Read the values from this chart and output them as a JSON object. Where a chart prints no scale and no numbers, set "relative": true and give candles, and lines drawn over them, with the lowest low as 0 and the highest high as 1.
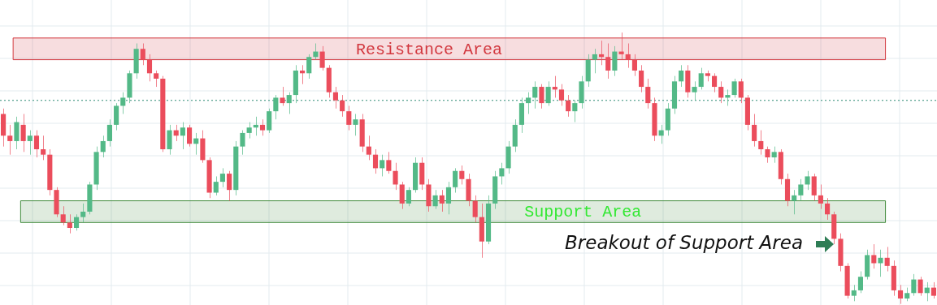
{
  "chart_data": {
    "type": "candlestick",
    "relative": true,
    "grid": true,
    "tick_labels": false,
    "categories": [
      null,
      null,
      null,
      null,
      null,
      null,
      null,
      null,
      null,
      null,
      null,
      null,
      null,
      null,
      null,
      null,
      null,
      null,
      null,
      null,
      null,
      null,
      null,
      null,
      null,
      null,
      null,
      null,
      null,
      null,
      null,
      null,
      null,
      null,
      null,
      null,
      null,
      null,
      null,
      null,
      null,
      null,
      null,
      null,
      null,
      null,
      null,
      null,
      null,
      null,
      null,
      null,
      null,
      null,
      null,
      null,
      null,
      null,
      null,
      null,
      null,
      null,
      null,
      null,
      null,
      null,
      null,
      null,
      null,
      null,
      null,
      null,
      null,
      null,
      null,
      null,
      null,
      null,
      null,
      null,
      null,
      null,
      null,
      null,
      null,
      null,
      null,
      null,
      null,
      null,
      null,
      null,
      null,
      null,
      null,
      null,
      null,
      null,
      null,
      null,
      null,
      null,
      null,
      null,
      null,
      null,
      null,
      null,
      null,
      null,
      null,
      null,
      null,
      null,
      null,
      null,
      null,
      null,
      null,
      null,
      null,
      null,
      null,
      null,
      null,
      null,
      null,
      null,
      null,
      null,
      null,
      null,
      null,
      null,
      null,
      null,
      null,
      null,
      null,
      null,
      null
    ],
    "ohlc": [
      [
        0.7,
        0.72,
        0.58,
        0.62
      ],
      [
        0.62,
        0.66,
        0.55,
        0.6
      ],
      [
        0.6,
        0.69,
        0.57,
        0.67
      ],
      [
        0.66,
        0.7,
        0.56,
        0.6
      ],
      [
        0.6,
        0.64,
        0.55,
        0.62
      ],
      [
        0.62,
        0.64,
        0.54,
        0.57
      ],
      [
        0.57,
        0.62,
        0.53,
        0.55
      ],
      [
        0.55,
        0.57,
        0.4,
        0.42
      ],
      [
        0.42,
        0.43,
        0.32,
        0.33
      ],
      [
        0.33,
        0.36,
        0.29,
        0.3
      ],
      [
        0.3,
        0.33,
        0.26,
        0.28
      ],
      [
        0.28,
        0.33,
        0.27,
        0.32
      ],
      [
        0.32,
        0.37,
        0.3,
        0.34
      ],
      [
        0.34,
        0.45,
        0.33,
        0.44
      ],
      [
        0.44,
        0.58,
        0.42,
        0.56
      ],
      [
        0.56,
        0.62,
        0.54,
        0.6
      ],
      [
        0.6,
        0.68,
        0.58,
        0.66
      ],
      [
        0.66,
        0.74,
        0.64,
        0.73
      ],
      [
        0.73,
        0.78,
        0.7,
        0.76
      ],
      [
        0.76,
        0.86,
        0.74,
        0.85
      ],
      [
        0.85,
        0.96,
        0.83,
        0.94
      ],
      [
        0.94,
        0.96,
        0.88,
        0.9
      ],
      [
        0.9,
        0.92,
        0.82,
        0.85
      ],
      [
        0.85,
        0.86,
        0.8,
        0.83
      ],
      [
        0.83,
        0.84,
        0.56,
        0.57
      ],
      [
        0.57,
        0.66,
        0.55,
        0.64
      ],
      [
        0.64,
        0.66,
        0.6,
        0.62
      ],
      [
        0.62,
        0.67,
        0.57,
        0.65
      ],
      [
        0.65,
        0.66,
        0.58,
        0.59
      ],
      [
        0.59,
        0.63,
        0.55,
        0.61
      ],
      [
        0.61,
        0.64,
        0.52,
        0.53
      ],
      [
        0.53,
        0.54,
        0.39,
        0.41
      ],
      [
        0.41,
        0.47,
        0.4,
        0.45
      ],
      [
        0.45,
        0.5,
        0.43,
        0.48
      ],
      [
        0.48,
        0.49,
        0.38,
        0.42
      ],
      [
        0.42,
        0.6,
        0.4,
        0.58
      ],
      [
        0.58,
        0.64,
        0.55,
        0.63
      ],
      [
        0.63,
        0.67,
        0.61,
        0.65
      ],
      [
        0.65,
        0.69,
        0.62,
        0.66
      ],
      [
        0.66,
        0.68,
        0.62,
        0.64
      ],
      [
        0.64,
        0.72,
        0.63,
        0.71
      ],
      [
        0.71,
        0.77,
        0.68,
        0.76
      ],
      [
        0.76,
        0.8,
        0.73,
        0.74
      ],
      [
        0.74,
        0.78,
        0.7,
        0.77
      ],
      [
        0.77,
        0.88,
        0.74,
        0.86
      ],
      [
        0.86,
        0.88,
        0.81,
        0.85
      ],
      [
        0.85,
        0.92,
        0.83,
        0.91
      ],
      [
        0.91,
        0.96,
        0.9,
        0.93
      ],
      [
        0.93,
        0.95,
        0.86,
        0.87
      ],
      [
        0.87,
        0.88,
        0.76,
        0.78
      ],
      [
        0.78,
        0.8,
        0.72,
        0.75
      ],
      [
        0.75,
        0.77,
        0.69,
        0.71
      ],
      [
        0.71,
        0.73,
        0.64,
        0.66
      ],
      [
        0.66,
        0.7,
        0.62,
        0.68
      ],
      [
        0.68,
        0.7,
        0.56,
        0.58
      ],
      [
        0.58,
        0.62,
        0.53,
        0.55
      ],
      [
        0.55,
        0.57,
        0.48,
        0.5
      ],
      [
        0.5,
        0.55,
        0.47,
        0.53
      ],
      [
        0.53,
        0.56,
        0.48,
        0.49
      ],
      [
        0.49,
        0.52,
        0.42,
        0.44
      ],
      [
        0.44,
        0.45,
        0.35,
        0.37
      ],
      [
        0.37,
        0.43,
        0.36,
        0.42
      ],
      [
        0.42,
        0.54,
        0.41,
        0.52
      ],
      [
        0.52,
        0.54,
        0.42,
        0.44
      ],
      [
        0.44,
        0.46,
        0.34,
        0.36
      ],
      [
        0.36,
        0.42,
        0.35,
        0.4
      ],
      [
        0.4,
        0.42,
        0.34,
        0.37
      ],
      [
        0.37,
        0.45,
        0.33,
        0.43
      ],
      [
        0.43,
        0.5,
        0.41,
        0.49
      ],
      [
        0.49,
        0.51,
        0.44,
        0.46
      ],
      [
        0.46,
        0.48,
        0.36,
        0.38
      ],
      [
        0.38,
        0.4,
        0.3,
        0.32
      ],
      [
        0.32,
        0.37,
        0.17,
        0.23
      ],
      [
        0.23,
        0.4,
        0.22,
        0.37
      ],
      [
        0.37,
        0.49,
        0.35,
        0.47
      ],
      [
        0.47,
        0.52,
        0.44,
        0.5
      ],
      [
        0.5,
        0.6,
        0.48,
        0.58
      ],
      [
        0.58,
        0.68,
        0.56,
        0.66
      ],
      [
        0.66,
        0.76,
        0.63,
        0.74
      ],
      [
        0.74,
        0.78,
        0.7,
        0.76
      ],
      [
        0.76,
        0.82,
        0.72,
        0.8
      ],
      [
        0.8,
        0.81,
        0.72,
        0.74
      ],
      [
        0.74,
        0.82,
        0.73,
        0.8
      ],
      [
        0.8,
        0.84,
        0.76,
        0.79
      ],
      [
        0.79,
        0.81,
        0.73,
        0.75
      ],
      [
        0.75,
        0.77,
        0.69,
        0.71
      ],
      [
        0.71,
        0.75,
        0.67,
        0.74
      ],
      [
        0.74,
        0.84,
        0.72,
        0.82
      ],
      [
        0.82,
        0.92,
        0.8,
        0.9
      ],
      [
        0.9,
        0.94,
        0.85,
        0.92
      ],
      [
        0.92,
        0.97,
        0.88,
        0.91
      ],
      [
        0.91,
        0.96,
        0.83,
        0.86
      ],
      [
        0.86,
        0.95,
        0.84,
        0.93
      ],
      [
        0.93,
        1.0,
        0.9,
        0.92
      ],
      [
        0.92,
        0.96,
        0.87,
        0.9
      ],
      [
        0.9,
        0.92,
        0.84,
        0.86
      ],
      [
        0.86,
        0.88,
        0.78,
        0.8
      ],
      [
        0.8,
        0.83,
        0.72,
        0.74
      ],
      [
        0.74,
        0.76,
        0.6,
        0.62
      ],
      [
        0.62,
        0.66,
        0.59,
        0.64
      ],
      [
        0.64,
        0.74,
        0.62,
        0.72
      ],
      [
        0.72,
        0.84,
        0.7,
        0.82
      ],
      [
        0.82,
        0.88,
        0.8,
        0.86
      ],
      [
        0.86,
        0.88,
        0.76,
        0.78
      ],
      [
        0.78,
        0.82,
        0.75,
        0.8
      ],
      [
        0.8,
        0.87,
        0.79,
        0.85
      ],
      [
        0.85,
        0.86,
        0.82,
        0.84
      ],
      [
        0.84,
        0.85,
        0.78,
        0.8
      ],
      [
        0.8,
        0.82,
        0.74,
        0.76
      ],
      [
        0.76,
        0.79,
        0.73,
        0.77
      ],
      [
        0.77,
        0.83,
        0.76,
        0.82
      ],
      [
        0.82,
        0.83,
        0.74,
        0.76
      ],
      [
        0.76,
        0.77,
        0.64,
        0.66
      ],
      [
        0.66,
        0.7,
        0.58,
        0.6
      ],
      [
        0.6,
        0.64,
        0.55,
        0.57
      ],
      [
        0.57,
        0.58,
        0.52,
        0.54
      ],
      [
        0.54,
        0.58,
        0.52,
        0.56
      ],
      [
        0.56,
        0.57,
        0.44,
        0.46
      ],
      [
        0.46,
        0.48,
        0.36,
        0.38
      ],
      [
        0.38,
        0.42,
        0.33,
        0.4
      ],
      [
        0.4,
        0.46,
        0.38,
        0.44
      ],
      [
        0.44,
        0.49,
        0.42,
        0.47
      ],
      [
        0.47,
        0.48,
        0.38,
        0.4
      ],
      [
        0.4,
        0.44,
        0.35,
        0.37
      ],
      [
        0.37,
        0.39,
        0.31,
        0.33
      ],
      [
        0.33,
        0.34,
        0.22,
        0.24
      ],
      [
        0.24,
        0.26,
        0.12,
        0.14
      ],
      [
        0.14,
        0.15,
        0.02,
        0.03
      ],
      [
        0.03,
        0.07,
        0.01,
        0.05
      ],
      [
        0.05,
        0.12,
        0.04,
        0.1
      ],
      [
        0.1,
        0.2,
        0.09,
        0.18
      ],
      [
        0.18,
        0.22,
        0.13,
        0.15
      ],
      [
        0.15,
        0.2,
        0.1,
        0.17
      ],
      [
        0.17,
        0.21,
        0.12,
        0.14
      ],
      [
        0.14,
        0.16,
        0.03,
        0.05
      ],
      [
        0.05,
        0.07,
        0.0,
        0.02
      ],
      [
        0.02,
        0.06,
        0.01,
        0.04
      ],
      [
        0.04,
        0.11,
        0.03,
        0.09
      ],
      [
        0.09,
        0.1,
        0.03,
        0.04
      ],
      [
        0.04,
        0.08,
        0.01,
        0.06
      ],
      [
        0.06,
        0.08,
        0.02,
        0.03
      ]
    ],
    "colors": [
      "#eb4d5c",
      "#eb4d5c",
      "#53b987",
      "#eb4d5c",
      "#53b987",
      "#eb4d5c",
      "#eb4d5c",
      "#eb4d5c",
      "#eb4d5c",
      "#eb4d5c",
      "#eb4d5c",
      "#53b987",
      "#53b987",
      "#53b987",
      "#53b987",
      "#53b987",
      "#53b987",
      "#53b987",
      "#53b987",
      "#53b987",
      "#53b987",
      "#eb4d5c",
      "#eb4d5c",
      "#eb4d5c",
      "#eb4d5c",
      "#53b987",
      "#eb4d5c",
      "#53b987",
      "#eb4d5c",
      "#53b987",
      "#eb4d5c",
      "#eb4d5c",
      "#53b987",
      "#53b987",
      "#eb4d5c",
      "#53b987",
      "#53b987",
      "#53b987",
      "#53b987",
      "#eb4d5c",
      "#53b987",
      "#53b987",
      "#eb4d5c",
      "#53b987",
      "#53b987",
      "#eb4d5c",
      "#53b987",
      "#53b987",
      "#eb4d5c",
      "#eb4d5c",
      "#eb4d5c",
      "#eb4d5c",
      "#eb4d5c",
      "#53b987",
      "#eb4d5c",
      "#eb4d5c",
      "#eb4d5c",
      "#53b987",
      "#eb4d5c",
      "#eb4d5c",
      "#eb4d5c",
      "#53b987",
      "#53b987",
      "#eb4d5c",
      "#eb4d5c",
      "#53b987",
      "#eb4d5c",
      "#53b987",
      "#53b987",
      "#eb4d5c",
      "#eb4d5c",
      "#eb4d5c",
      "#eb4d5c",
      "#53b987",
      "#53b987",
      "#53b987",
      "#53b987",
      "#53b987",
      "#53b987",
      "#53b987",
      "#53b987",
      "#eb4d5c",
      "#53b987",
      "#eb4d5c",
      "#eb4d5c",
      "#eb4d5c",
      "#53b987",
      "#53b987",
      "#53b987",
      "#53b987",
      "#eb4d5c",
      "#eb4d5c",
      "#53b987",
      "#eb4d5c",
      "#eb4d5c",
      "#eb4d5c",
      "#eb4d5c",
      "#eb4d5c",
      "#eb4d5c",
      "#53b987",
      "#53b987",
      "#53b987",
      "#53b987",
      "#eb4d5c",
      "#53b987",
      "#53b987",
      "#eb4d5c",
      "#eb4d5c",
      "#eb4d5c",
      "#53b987",
      "#53b987",
      "#eb4d5c",
      "#eb4d5c",
      "#eb4d5c",
      "#eb4d5c",
      "#eb4d5c",
      "#53b987",
      "#eb4d5c",
      "#eb4d5c",
      "#53b987",
      "#53b987",
      "#53b987",
      "#eb4d5c",
      "#eb4d5c",
      "#eb4d5c",
      "#eb4d5c",
      "#eb4d5c",
      "#eb4d5c",
      "#53b987",
      "#53b987",
      "#53b987",
      "#eb4d5c",
      "#53b987",
      "#eb4d5c",
      "#eb4d5c",
      "#eb4d5c",
      "#53b987",
      "#53b987",
      "#eb4d5c",
      "#53b987",
      "#eb4d5c"
    ],
    "bands": [
      {
        "axis": "y",
        "from": 0.9,
        "to": 0.98,
        "label": "Resistance Area",
        "color": "#d2383f"
      },
      {
        "axis": "y",
        "from": 0.3,
        "to": 0.38,
        "label": "Support Area",
        "color": "#3f8a3a"
      }
    ],
    "ref_lines": [
      {
        "axis": "y",
        "value": 0.75,
        "color": "#2e8b74",
        "line_style": "dotted"
      }
    ],
    "annotations": [
      "Breakout of Support Area"
    ]
  }
}
